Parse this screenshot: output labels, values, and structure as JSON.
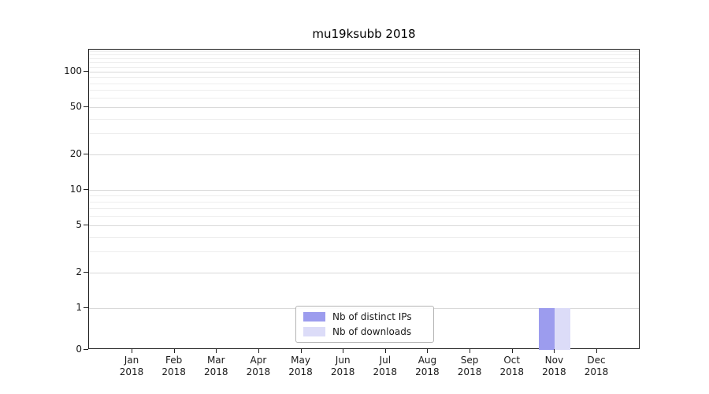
{
  "title": "mu19ksubb 2018",
  "chart_data": {
    "type": "bar",
    "title": "mu19ksubb 2018",
    "categories": [
      "Jan",
      "Feb",
      "Mar",
      "Apr",
      "May",
      "Jun",
      "Jul",
      "Aug",
      "Sep",
      "Oct",
      "Nov",
      "Dec"
    ],
    "year_label": "2018",
    "series": [
      {
        "name": "Nb of distinct IPs",
        "color": "#9c9cee",
        "values": [
          0,
          0,
          0,
          0,
          0,
          0,
          0,
          0,
          0,
          0,
          1,
          0
        ]
      },
      {
        "name": "Nb of downloads",
        "color": "#dcdcf8",
        "values": [
          0,
          0,
          0,
          0,
          0,
          0,
          0,
          0,
          0,
          0,
          1,
          0
        ]
      }
    ],
    "yscale": "symlog",
    "yticks": [
      0,
      1,
      2,
      5,
      10,
      20,
      50,
      100
    ],
    "minor_yticks": [
      3,
      4,
      6,
      7,
      8,
      9,
      30,
      40,
      60,
      70,
      80,
      90,
      110,
      120,
      130,
      140,
      150
    ],
    "ylim": [
      0,
      154
    ],
    "grid": true,
    "legend_position": "lower center"
  }
}
